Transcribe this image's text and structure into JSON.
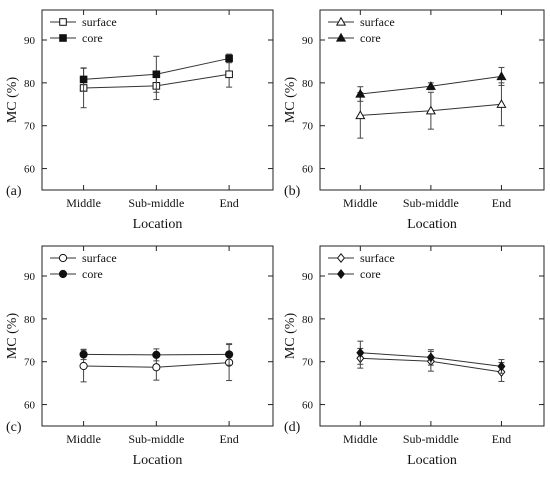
{
  "chart_data": [
    {
      "type": "line",
      "panel_label": "(a)",
      "categories": [
        "Middle",
        "Sub-middle",
        "End"
      ],
      "xlabel": "Location",
      "ylabel": "MC (%)",
      "ylim": [
        55,
        97
      ],
      "yticks": [
        60,
        70,
        80,
        90
      ],
      "series": [
        {
          "name": "surface",
          "marker": "square-open",
          "values": [
            78.8,
            79.3,
            82.0
          ],
          "errors": [
            4.6,
            3.2,
            3.0
          ]
        },
        {
          "name": "core",
          "marker": "square-filled",
          "values": [
            80.8,
            82.0,
            85.7
          ],
          "errors": [
            2.7,
            4.2,
            1.0
          ]
        }
      ]
    },
    {
      "type": "line",
      "panel_label": "(b)",
      "categories": [
        "Middle",
        "Sub-middle",
        "End"
      ],
      "xlabel": "Location",
      "ylabel": "MC (%)",
      "ylim": [
        55,
        97
      ],
      "yticks": [
        60,
        70,
        80,
        90
      ],
      "series": [
        {
          "name": "surface",
          "marker": "triangle-open",
          "values": [
            72.4,
            73.5,
            75.0
          ],
          "errors": [
            5.3,
            4.3,
            5.0
          ]
        },
        {
          "name": "core",
          "marker": "triangle-filled",
          "values": [
            77.4,
            79.2,
            81.5
          ],
          "errors": [
            1.7,
            0.8,
            2.1
          ]
        }
      ]
    },
    {
      "type": "line",
      "panel_label": "(c)",
      "categories": [
        "Middle",
        "Sub-middle",
        "End"
      ],
      "xlabel": "Location",
      "ylabel": "MC (%)",
      "ylim": [
        55,
        97
      ],
      "yticks": [
        60,
        70,
        80,
        90
      ],
      "series": [
        {
          "name": "surface",
          "marker": "circle-open",
          "values": [
            69.0,
            68.7,
            69.8
          ],
          "errors": [
            3.7,
            3.0,
            4.2
          ]
        },
        {
          "name": "core",
          "marker": "circle-filled",
          "values": [
            71.7,
            71.6,
            71.7
          ],
          "errors": [
            1.2,
            1.4,
            2.5
          ]
        }
      ]
    },
    {
      "type": "line",
      "panel_label": "(d)",
      "categories": [
        "Middle",
        "Sub-middle",
        "End"
      ],
      "xlabel": "Location",
      "ylabel": "MC (%)",
      "ylim": [
        55,
        97
      ],
      "yticks": [
        60,
        70,
        80,
        90
      ],
      "series": [
        {
          "name": "surface",
          "marker": "diamond-open",
          "values": [
            70.8,
            70.1,
            67.6
          ],
          "errors": [
            2.3,
            2.3,
            2.2
          ]
        },
        {
          "name": "core",
          "marker": "diamond-filled",
          "values": [
            72.1,
            71.0,
            68.9
          ],
          "errors": [
            2.7,
            1.8,
            1.6
          ]
        }
      ]
    }
  ]
}
